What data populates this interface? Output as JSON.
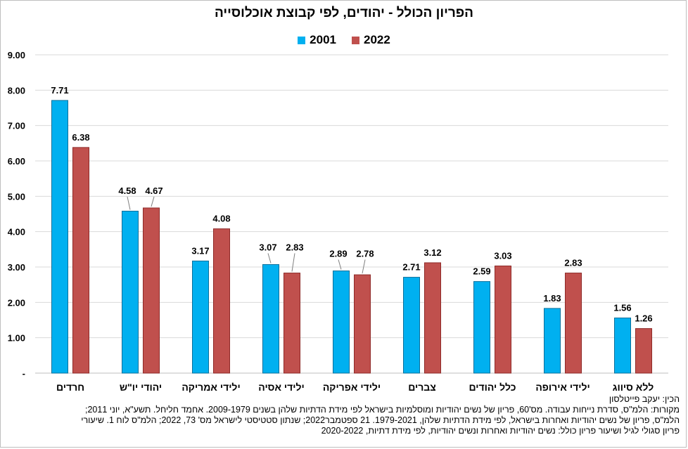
{
  "chart_data": {
    "type": "bar",
    "title": "הפריון הכולל - יהודים, לפי קבוצת אוכלוסייה",
    "categories": [
      "חרדים",
      "יהודי יו\"ש",
      "ילידי אמריקה",
      "ילידי אסיה",
      "ילידי אפריקה",
      "צברים",
      "כלל יהודים",
      "ילידי אירופה",
      "ללא סיווג"
    ],
    "series": [
      {
        "name": "2001",
        "color": "#00B0F0",
        "values": [
          7.71,
          4.58,
          3.17,
          3.07,
          2.89,
          2.71,
          2.59,
          1.83,
          1.56
        ]
      },
      {
        "name": "2022",
        "color": "#C0504D",
        "values": [
          6.38,
          4.67,
          4.08,
          2.83,
          2.78,
          3.12,
          3.03,
          2.83,
          1.26
        ]
      }
    ],
    "ylim": [
      0,
      9
    ],
    "yticks": [
      "-",
      "1.00",
      "2.00",
      "3.00",
      "4.00",
      "5.00",
      "6.00",
      "7.00",
      "8.00",
      "9.00"
    ],
    "data_labels": true,
    "grid": true,
    "legend_position": "top"
  },
  "footnotes": {
    "credit": "הכין: יעקב פייטלסון",
    "sources_1": "מקורות: הלמ\"ס, סדרת נייחות עבודה. מס'60, פריון של נשים יהודיות ומוסלמיות בישראל לפי מידת הדתיות שלהן בשנים 2009-1979. אחמד חליחל. תשע\"א, יוני 2011;",
    "sources_2": "הלמ\"ס, פריון של נשים יהודיות ואחרות בישראל, לפי מידת הדתיות שלהן, 1979-2021. 21 ספטמבר2022; שנתון סטטיסטי לישראל מס' 73, 2022; הלמ\"ס לוח 1. שיעורי",
    "sources_3": "פריון סגולי לגיל ושיעור פריון כולל: נשים יהודיות ואחרות ונשים יהודיות, לפי מידת דתיות, 2020-2022"
  }
}
